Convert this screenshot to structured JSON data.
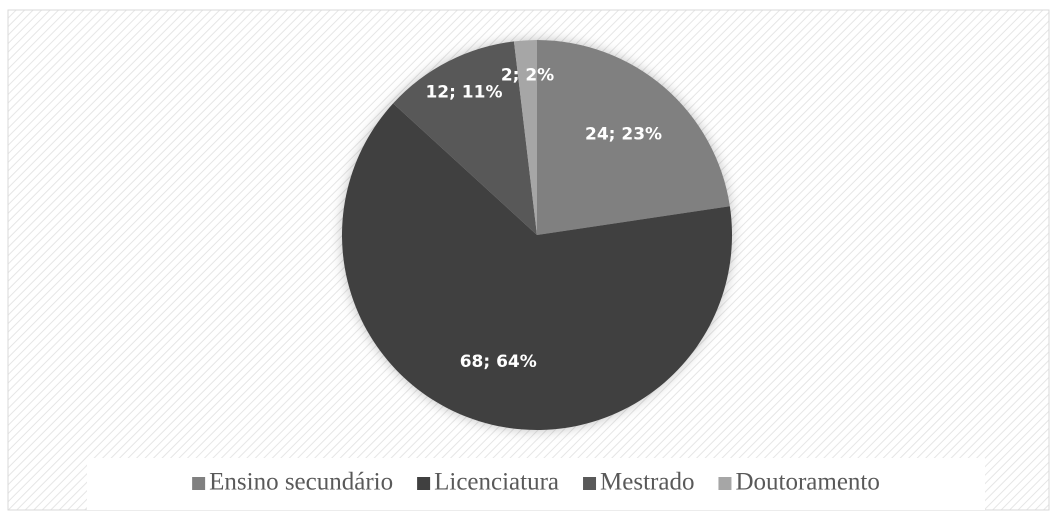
{
  "chart_data": {
    "type": "pie",
    "categories": [
      "Ensino secundário",
      "Licenciatura",
      "Mestrado",
      "Doutoramento"
    ],
    "values": [
      24,
      68,
      12,
      2
    ],
    "value_labels": [
      "24; 23%",
      "68; 64%",
      "12; 11%",
      "2; 2%"
    ],
    "colors": [
      "#808080",
      "#404040",
      "#595959",
      "#a6a6a6"
    ],
    "legend": "bottom"
  }
}
